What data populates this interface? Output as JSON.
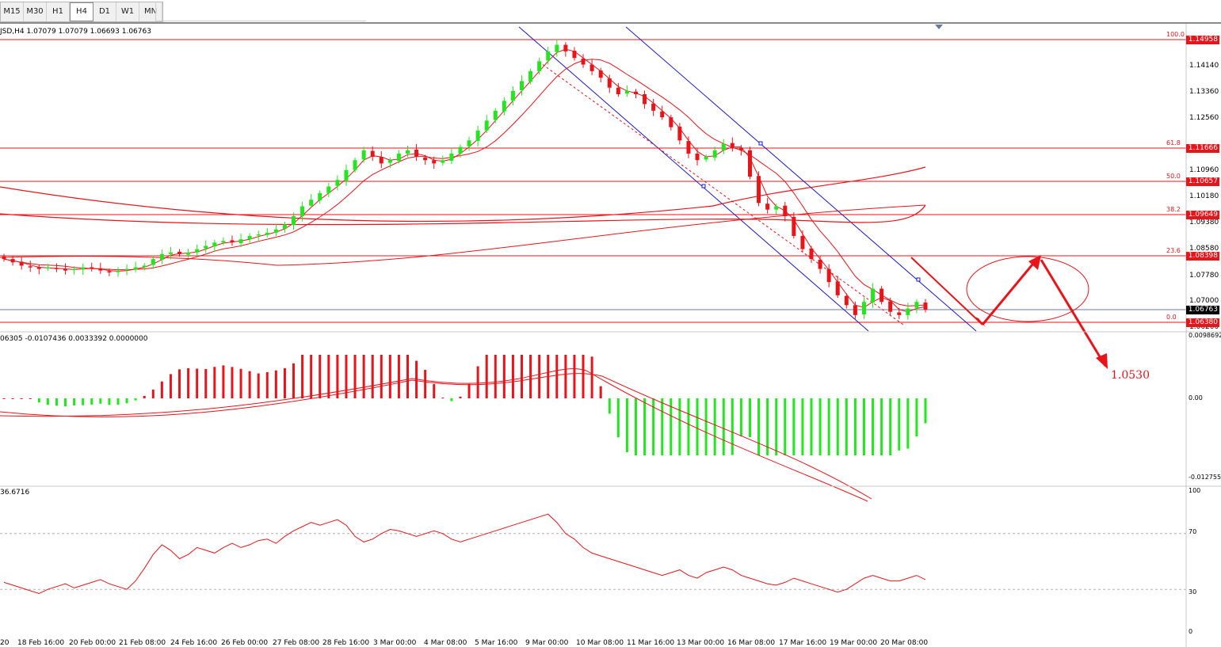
{
  "toolbar": {
    "timeframes": [
      "M15",
      "M30",
      "H1",
      "H4",
      "D1",
      "W1",
      "MN"
    ],
    "active": "H4"
  },
  "chart": {
    "symbol_info": "JSD,H4  1.07079 1.07079 1.06693 1.06763",
    "current_price": "1.06763",
    "target_label": "1.0530",
    "price_axis": [
      "1.14140",
      "1.13360",
      "1.12560",
      "1.10960",
      "1.10180",
      "1.09380",
      "1.08580",
      "1.07780",
      "1.07000",
      "1.06200"
    ],
    "fib_levels": [
      {
        "pct": "100.0",
        "price": "1.14958"
      },
      {
        "pct": "61.8",
        "price": "1.11666"
      },
      {
        "pct": "50.0",
        "price": "1.10657"
      },
      {
        "pct": "38.2",
        "price": "1.09649"
      },
      {
        "pct": "23.6",
        "price": "1.08398"
      },
      {
        "pct": "0.0",
        "price": "1.06380"
      }
    ],
    "colors": {
      "bull": "#23e620",
      "bear": "#e8141a",
      "line": "#e8141a",
      "channel": "#1a1ad0",
      "cursor": "#1f3c8c"
    }
  },
  "macd": {
    "header": "06305 -0.0107436 0.0033392 0.0000000",
    "axis": [
      "0.0098692",
      "0.00",
      "-0.012755"
    ]
  },
  "rsi": {
    "header": "36.6716",
    "axis": [
      "100",
      "70",
      "30",
      "0"
    ]
  },
  "time_axis": [
    "20",
    "18 Feb 16:00",
    "20 Feb 00:00",
    "21 Feb 08:00",
    "24 Feb 16:00",
    "26 Feb 00:00",
    "27 Feb 08:00",
    "28 Feb 16:00",
    "3 Mar 00:00",
    "4 Mar 08:00",
    "5 Mar 16:00",
    "9 Mar 00:00",
    "10 Mar 08:00",
    "11 Mar 16:00",
    "13 Mar 00:00",
    "16 Mar 08:00",
    "17 Mar 16:00",
    "19 Mar 00:00",
    "20 Mar 08:00"
  ],
  "chart_data": {
    "type": "candlestick",
    "timeframe": "H4",
    "closes": [
      1.083,
      1.082,
      1.081,
      1.0805,
      1.08,
      1.0805,
      1.08,
      1.0795,
      1.08,
      1.0805,
      1.08,
      1.0795,
      1.079,
      1.0795,
      1.08,
      1.0805,
      1.081,
      1.083,
      1.0845,
      1.085,
      1.0845,
      1.085,
      1.086,
      1.087,
      1.088,
      1.0885,
      1.088,
      1.089,
      1.09,
      1.0905,
      1.091,
      1.092,
      1.0935,
      1.096,
      1.099,
      1.101,
      1.103,
      1.105,
      1.107,
      1.11,
      1.113,
      1.116,
      1.114,
      1.112,
      1.113,
      1.115,
      1.116,
      1.114,
      1.113,
      1.112,
      1.113,
      1.115,
      1.117,
      1.119,
      1.122,
      1.125,
      1.128,
      1.131,
      1.134,
      1.137,
      1.14,
      1.143,
      1.146,
      1.148,
      1.146,
      1.144,
      1.142,
      1.14,
      1.138,
      1.135,
      1.133,
      1.134,
      1.133,
      1.13,
      1.128,
      1.126,
      1.123,
      1.119,
      1.115,
      1.113,
      1.114,
      1.116,
      1.118,
      1.117,
      1.116,
      1.108,
      1.1,
      1.098,
      1.099,
      1.096,
      1.09,
      1.086,
      1.083,
      1.08,
      1.076,
      1.072,
      1.069,
      1.066,
      1.07,
      1.074,
      1.07,
      1.067,
      1.066,
      1.068,
      1.07,
      1.0676
    ],
    "fibonacci": {
      "0.0": 1.0638,
      "23.6": 1.08398,
      "38.2": 1.09649,
      "50.0": 1.10657,
      "61.8": 1.11666,
      "100.0": 1.14958
    },
    "last": 1.06763,
    "forecast_target": 1.053,
    "macd": {
      "value": -0.0107436,
      "signal": 0.0033392,
      "ylim": [
        -0.012755,
        0.0098692
      ]
    },
    "rsi": {
      "value": 36.6716,
      "levels": [
        70,
        30
      ],
      "ylim": [
        0,
        100
      ],
      "values": [
        35,
        33,
        31,
        29,
        27,
        30,
        32,
        34,
        31,
        33,
        35,
        37,
        34,
        32,
        30,
        36,
        45,
        55,
        62,
        58,
        52,
        55,
        60,
        58,
        56,
        60,
        63,
        60,
        62,
        65,
        66,
        63,
        68,
        72,
        75,
        78,
        76,
        78,
        80,
        76,
        68,
        64,
        66,
        70,
        73,
        72,
        70,
        68,
        70,
        72,
        70,
        66,
        64,
        66,
        68,
        70,
        72,
        74,
        76,
        78,
        80,
        82,
        84,
        78,
        70,
        66,
        60,
        56,
        54,
        52,
        50,
        48,
        46,
        44,
        42,
        40,
        42,
        44,
        40,
        38,
        42,
        44,
        46,
        44,
        40,
        38,
        36,
        34,
        33,
        35,
        38,
        36,
        34,
        32,
        30,
        28,
        30,
        34,
        38,
        40,
        38,
        36,
        36,
        38,
        40,
        37
      ]
    }
  }
}
